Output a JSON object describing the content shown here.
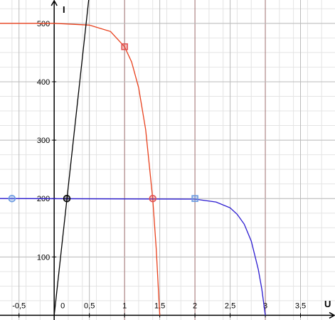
{
  "chart_data": {
    "type": "line",
    "x_label": "U",
    "y_label": "I",
    "xlim": [
      -0.77,
      3.99
    ],
    "ylim": [
      -8,
      540
    ],
    "xticks": [
      {
        "value": -0.5,
        "label": "-0,5"
      },
      0,
      {
        "value": 0.5,
        "label": "0,5"
      },
      1,
      {
        "value": 1.5,
        "label": "1,5"
      },
      2,
      {
        "value": 2.5,
        "label": "2,5"
      },
      3,
      {
        "value": 3.5,
        "label": "3,5"
      }
    ],
    "yticks": [
      100,
      200,
      300,
      400,
      500
    ],
    "grid": true,
    "minor_grid": {
      "x": 0.2,
      "y": 25
    },
    "series": [
      {
        "color": "#e8401c",
        "x": [
          -0.77,
          0,
          0.5,
          0.8,
          1,
          1.1,
          1.2,
          1.3,
          1.4,
          1.45,
          1.5
        ],
        "values": [
          500,
          500,
          497,
          486,
          460,
          434,
          390,
          318,
          200,
          113,
          0
        ]
      },
      {
        "color": "#2a1ad0",
        "x": [
          -0.77,
          2,
          2.3,
          2.5,
          2.6,
          2.7,
          2.8,
          2.9,
          2.95,
          3
        ],
        "values": [
          200,
          199,
          194,
          184,
          173,
          156,
          127,
          79,
          45,
          0
        ]
      },
      {
        "color": "#000000",
        "x": [
          0,
          0.49
        ],
        "values": [
          0,
          540
        ]
      }
    ],
    "points": [
      {
        "x": 1,
        "y": 460,
        "color": "#e05050",
        "shape": "square"
      },
      {
        "x": 1.4,
        "y": 200,
        "color": "#e05050",
        "shape": "circle"
      },
      {
        "x": -0.6,
        "y": 200,
        "color": "#6a9ae0",
        "shape": "circle"
      },
      {
        "x": 2,
        "y": 200,
        "color": "#6a9ae0",
        "shape": "square"
      },
      {
        "x": 0.18,
        "y": 200,
        "color": "#000000",
        "shape": "circle"
      }
    ]
  }
}
